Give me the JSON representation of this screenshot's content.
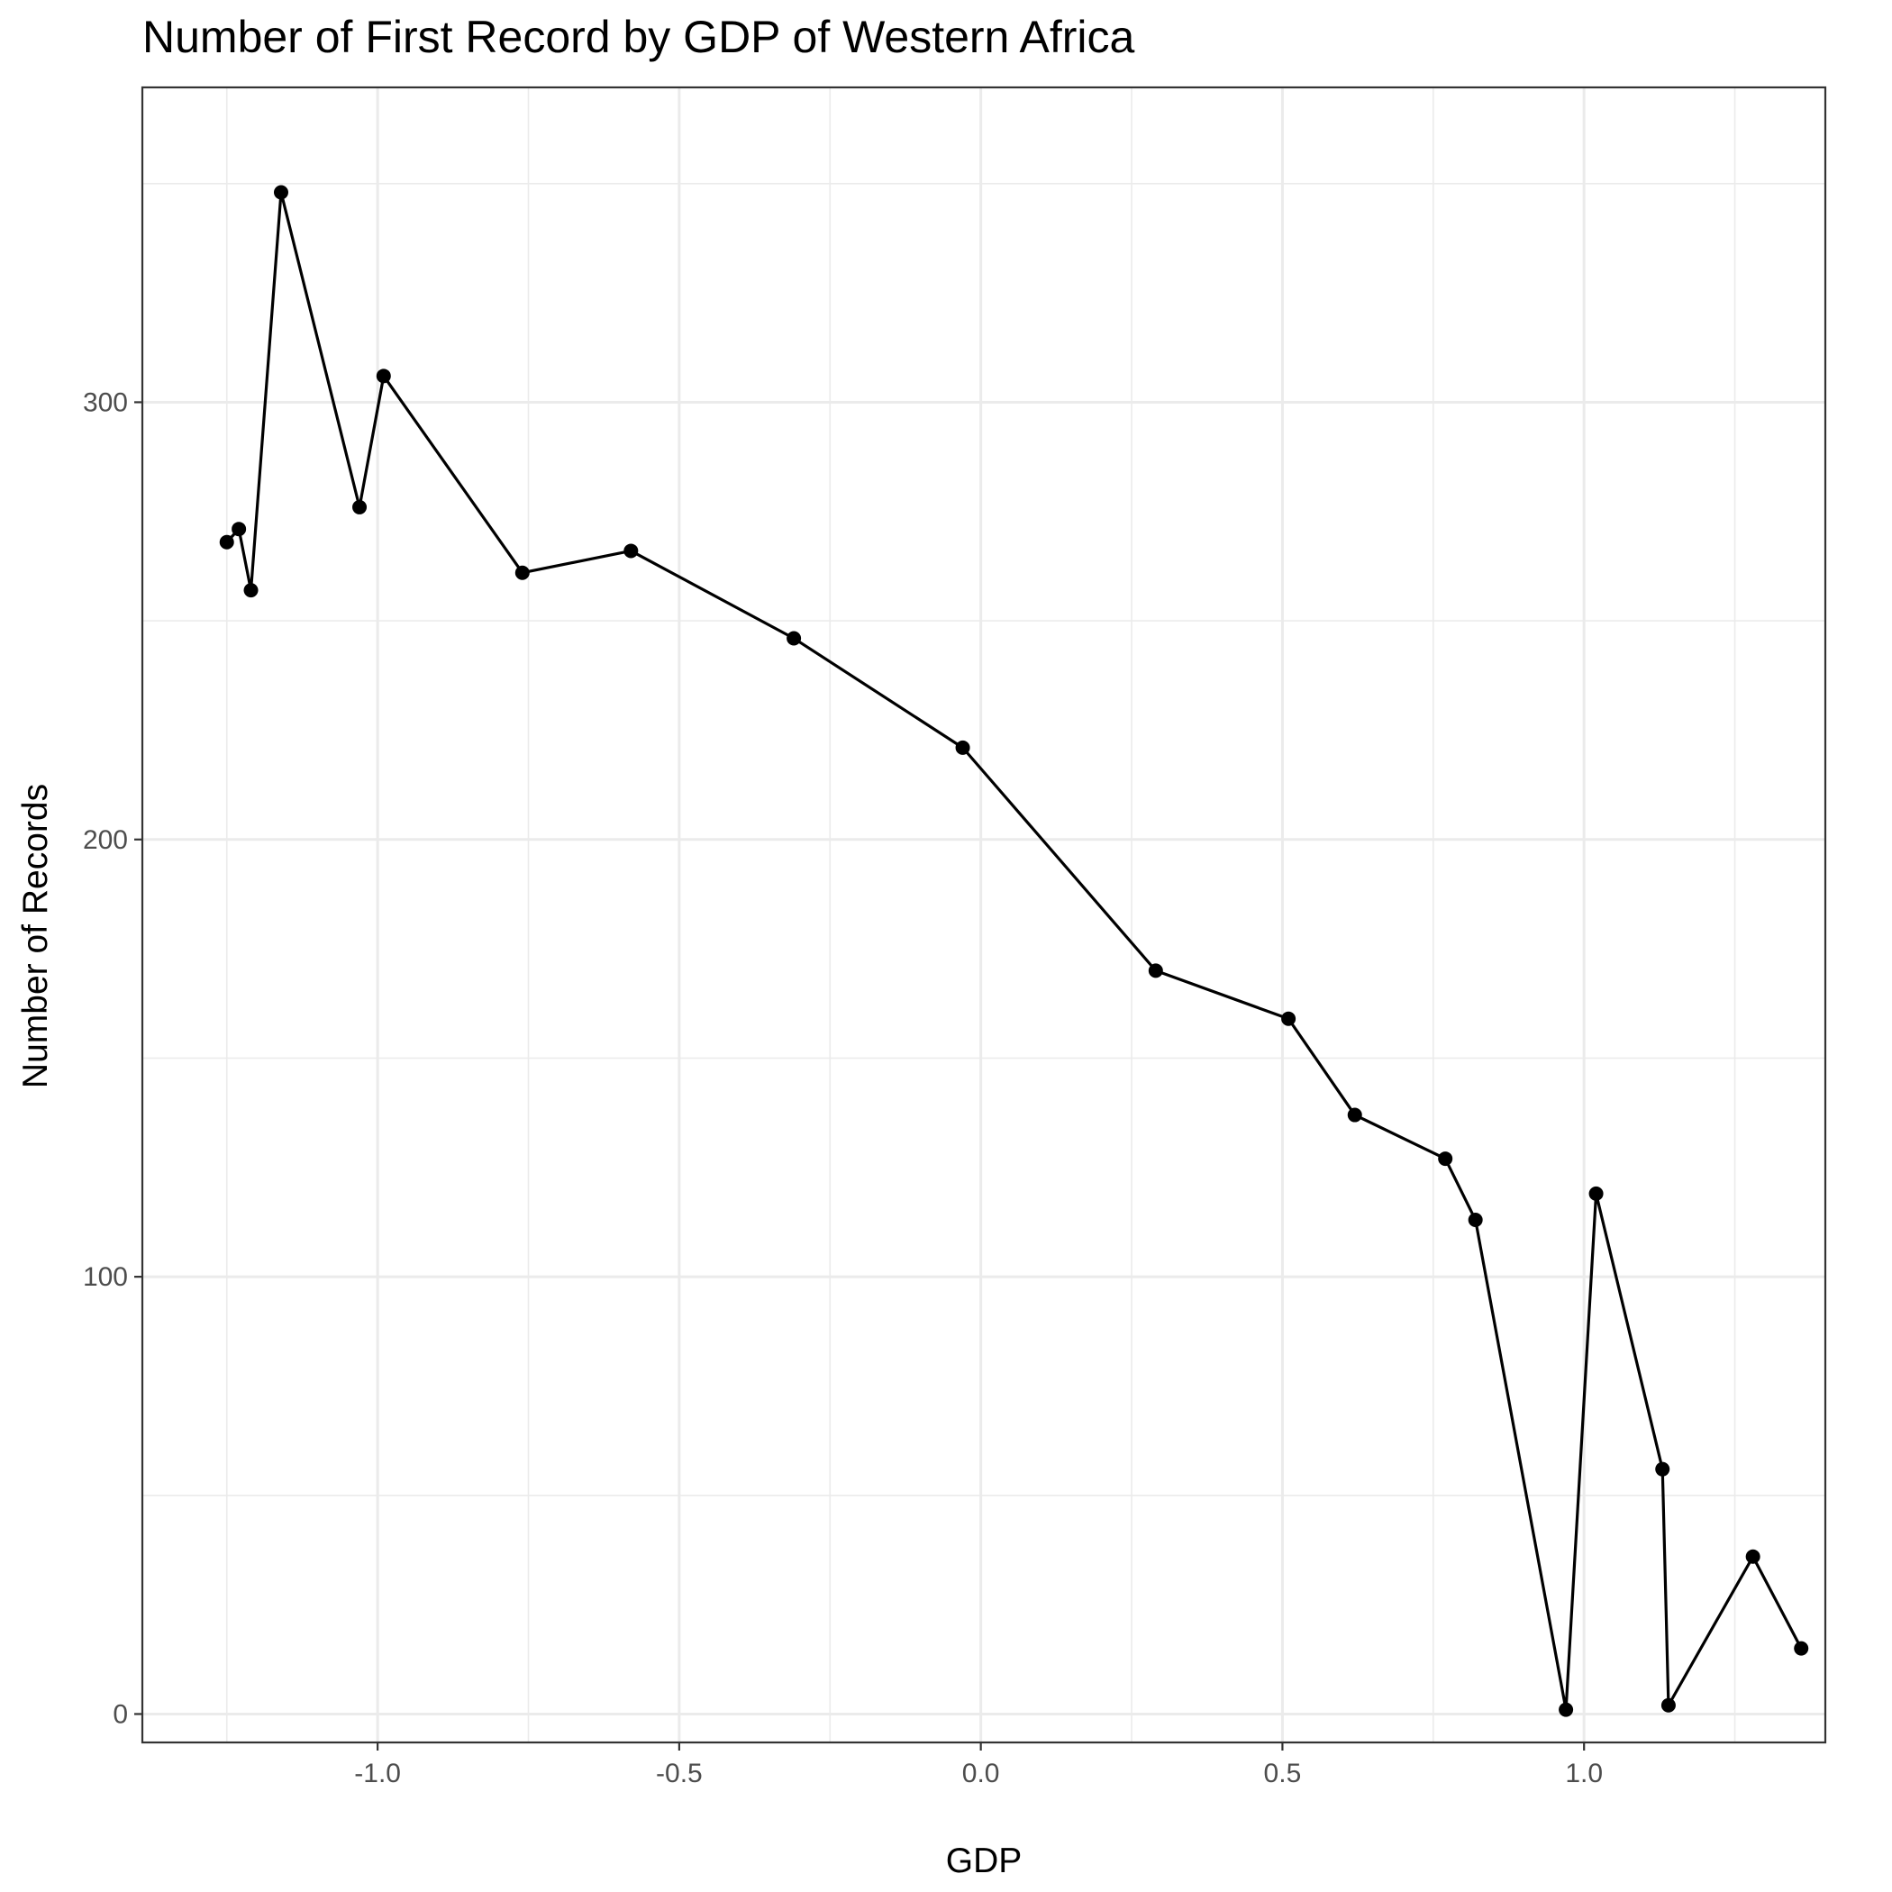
{
  "chart_data": {
    "type": "line",
    "title": "Number of First Record by GDP of Western Africa",
    "xlabel": "GDP",
    "ylabel": "Number of Records",
    "xlim": [
      -1.39,
      1.4
    ],
    "ylim": [
      -6.5,
      372
    ],
    "x_ticks": [
      -1.0,
      -0.5,
      0.0,
      0.5,
      1.0
    ],
    "x_tick_labels": [
      "-1.0",
      "-0.5",
      "0.0",
      "0.5",
      "1.0"
    ],
    "y_ticks": [
      0,
      100,
      200,
      300
    ],
    "y_tick_labels": [
      "0",
      "100",
      "200",
      "300"
    ],
    "x_minor_ticks": [
      -1.25,
      -0.75,
      -0.25,
      0.25,
      0.75,
      1.25
    ],
    "y_minor_ticks": [
      50,
      150,
      250,
      350
    ],
    "grid": true,
    "legend": "none",
    "series": [
      {
        "color": "#000000",
        "points": [
          {
            "x": -1.25,
            "y": 268
          },
          {
            "x": -1.23,
            "y": 271
          },
          {
            "x": -1.21,
            "y": 257
          },
          {
            "x": -1.16,
            "y": 348
          },
          {
            "x": -1.03,
            "y": 276
          },
          {
            "x": -0.99,
            "y": 306
          },
          {
            "x": -0.76,
            "y": 261
          },
          {
            "x": -0.58,
            "y": 266
          },
          {
            "x": -0.31,
            "y": 246
          },
          {
            "x": -0.03,
            "y": 221
          },
          {
            "x": 0.29,
            "y": 170
          },
          {
            "x": 0.51,
            "y": 159
          },
          {
            "x": 0.62,
            "y": 137
          },
          {
            "x": 0.77,
            "y": 127
          },
          {
            "x": 0.82,
            "y": 113
          },
          {
            "x": 0.97,
            "y": 1
          },
          {
            "x": 1.02,
            "y": 119
          },
          {
            "x": 1.13,
            "y": 56
          },
          {
            "x": 1.14,
            "y": 2
          },
          {
            "x": 1.28,
            "y": 36
          },
          {
            "x": 1.36,
            "y": 15
          }
        ]
      }
    ]
  }
}
